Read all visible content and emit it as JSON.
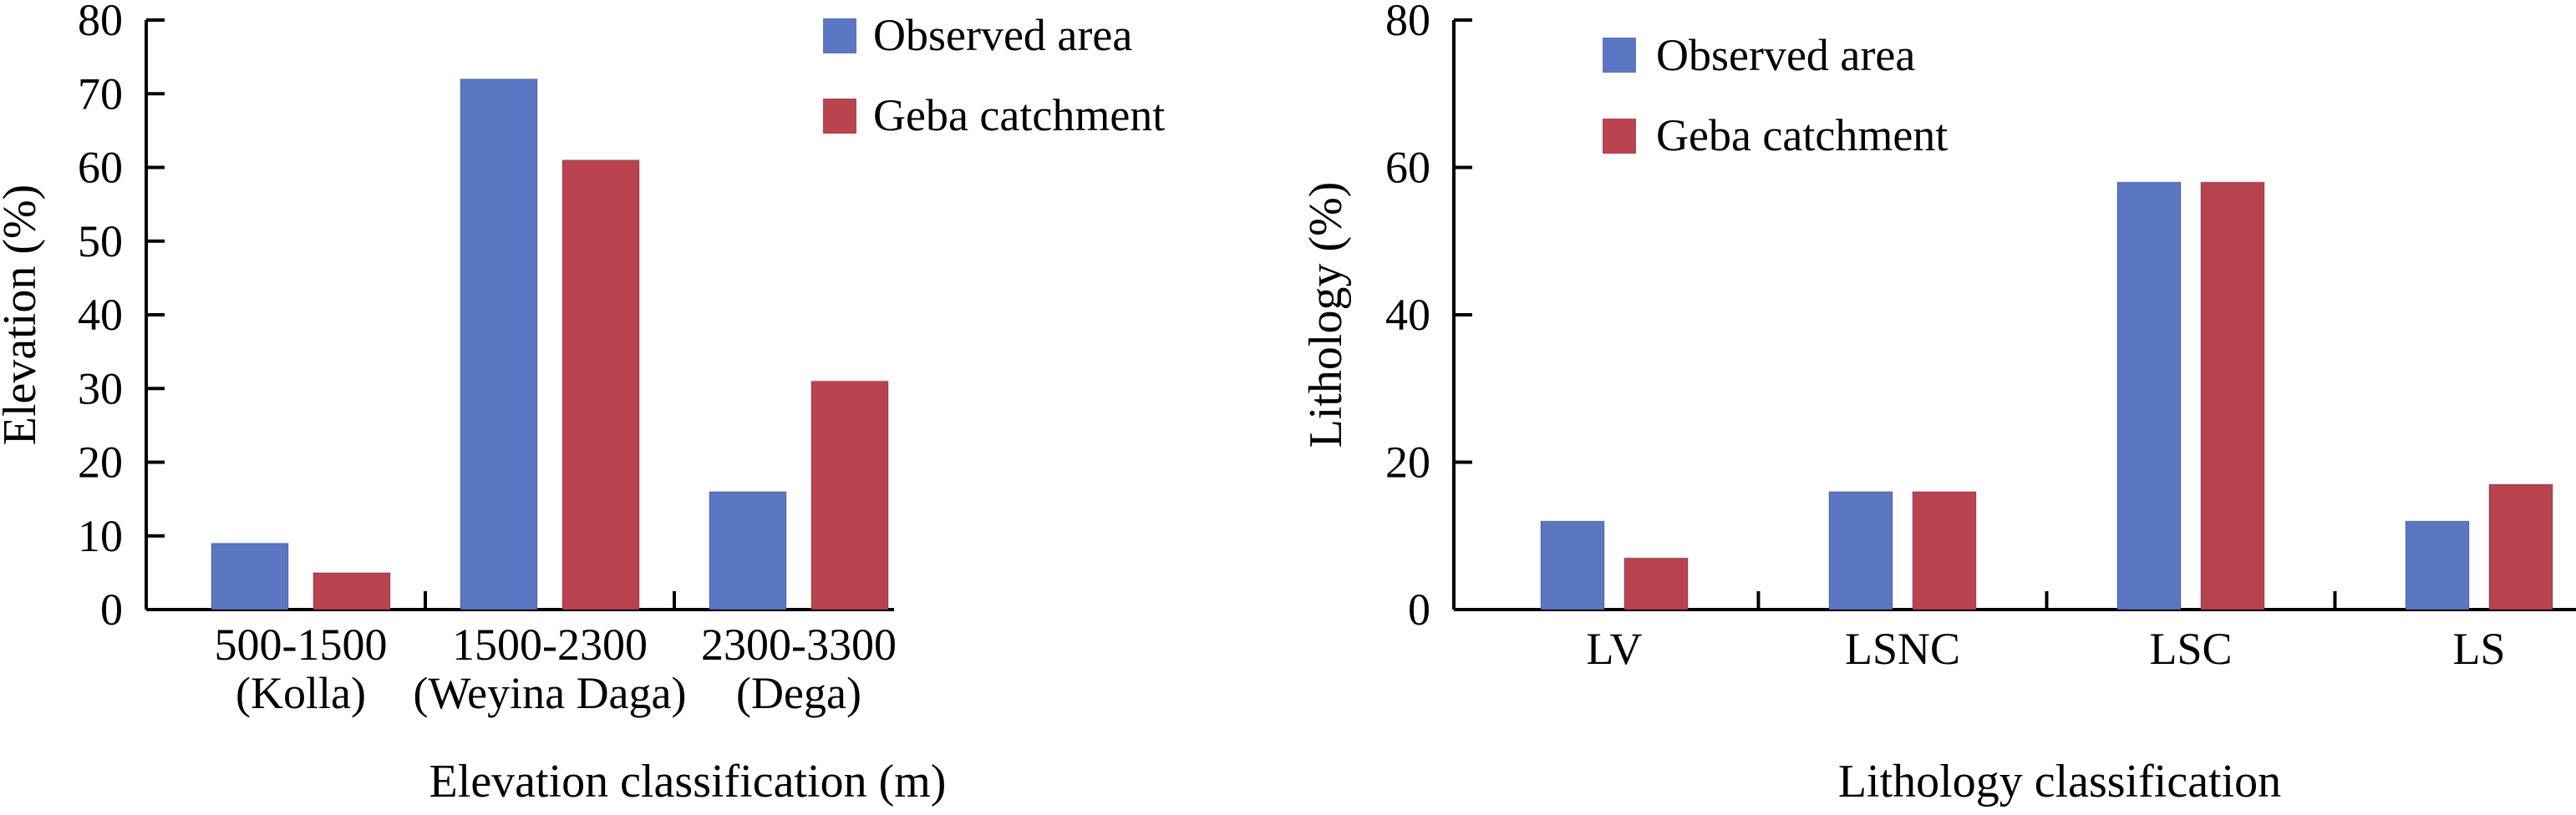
{
  "colors": {
    "observed": "#5b76c2",
    "geba": "#b9444f"
  },
  "chart_data": [
    {
      "type": "bar",
      "xlabel": "Elevation classification (m)",
      "ylabel": "Elevation (%)",
      "ylim": [
        0,
        80
      ],
      "yticks": [
        0,
        10,
        20,
        30,
        40,
        50,
        60,
        70,
        80
      ],
      "categories": [
        [
          "500-1500",
          "(Kolla)"
        ],
        [
          "1500-2300",
          "(Weyina Daga)"
        ],
        [
          "2300-3300",
          "(Dega)"
        ]
      ],
      "series": [
        {
          "name": "Observed area",
          "values": [
            9,
            72,
            16
          ]
        },
        {
          "name": "Geba catchment",
          "values": [
            5,
            61,
            31
          ]
        }
      ],
      "legend": "top-right",
      "grid": false
    },
    {
      "type": "bar",
      "xlabel": "Lithology classification",
      "ylabel": "Lithology (%)",
      "ylim": [
        0,
        80
      ],
      "yticks": [
        0,
        20,
        40,
        60,
        80
      ],
      "categories": [
        [
          "LV"
        ],
        [
          "LSNC"
        ],
        [
          "LSC"
        ],
        [
          "LS"
        ]
      ],
      "series": [
        {
          "name": "Observed area",
          "values": [
            12,
            16,
            58,
            12
          ]
        },
        {
          "name": "Geba catchment",
          "values": [
            7,
            16,
            58,
            17
          ]
        }
      ],
      "legend": "top-left",
      "grid": false
    }
  ]
}
